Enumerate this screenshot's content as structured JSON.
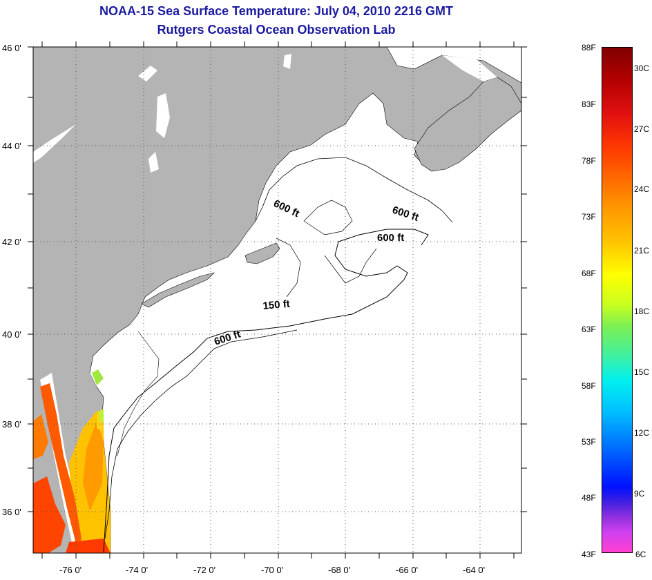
{
  "title": {
    "line1": "NOAA-15 Sea Surface Temperature:  July 04, 2010 2216 GMT",
    "line2": "Rutgers Coastal Ocean Observation Lab"
  },
  "latitude_labels": [
    "46 0'",
    "44 0'",
    "42 0'",
    "40 0'",
    "38 0'",
    "36 0'"
  ],
  "longitude_labels": [
    "-76 0'",
    "-74 0'",
    "-72 0'",
    "-70 0'",
    "-68 0'",
    "-66 0'",
    "-64 0'"
  ],
  "isobath_labels": [
    "600 ft",
    "600 ft",
    "600 ft",
    "150 ft",
    "600 ft"
  ],
  "colorbar": {
    "fahrenheit": [
      "88F",
      "83F",
      "78F",
      "73F",
      "68F",
      "63F",
      "58F",
      "53F",
      "48F",
      "43F"
    ],
    "celsius": [
      "30C",
      "27C",
      "24C",
      "21C",
      "18C",
      "15C",
      "12C",
      "9C",
      "6C"
    ]
  },
  "colors": {
    "land": "#b4b4b4",
    "water": "#ffffff",
    "title": "#1a1aa0",
    "sst_warm": "#ff9000",
    "sst_mid": "#ffc800",
    "sst_hot": "#ff4a00"
  }
}
